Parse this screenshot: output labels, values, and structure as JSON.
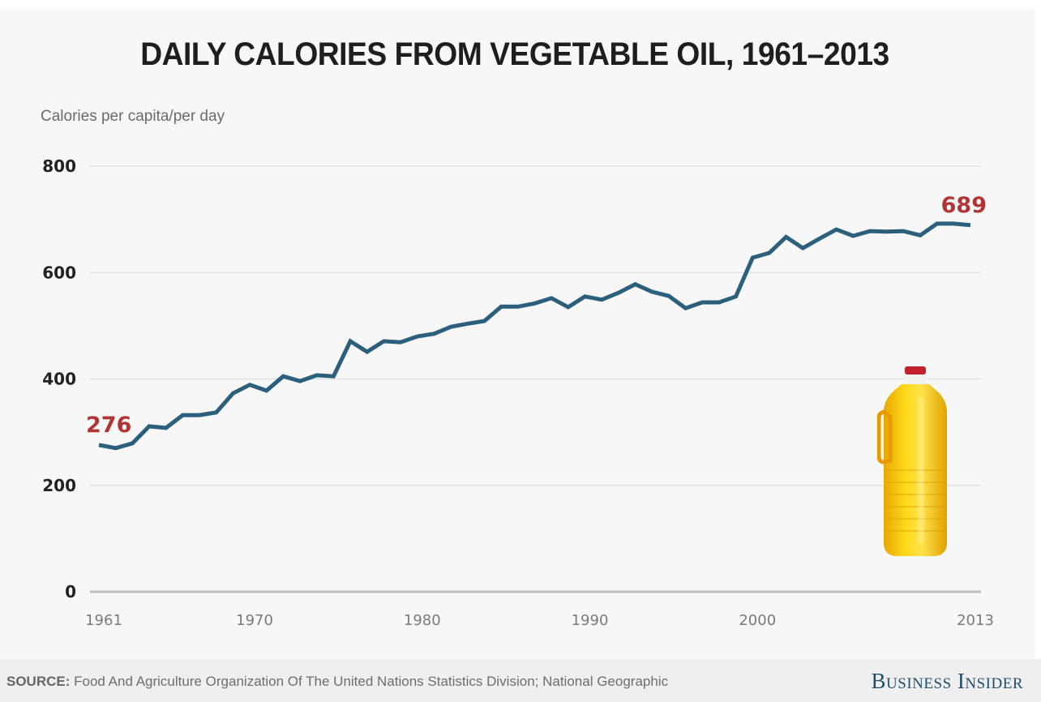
{
  "colors": {
    "line": "#2b5f7c",
    "annotation": "#b23333",
    "gridline": "#e2e2e2",
    "axis": "#bdbdbd",
    "brand": "#1f4e6e"
  },
  "chart_data": {
    "type": "line",
    "title": "DAILY CALORIES FROM VEGETABLE OIL, 1961–2013",
    "xlabel": "",
    "ylabel": "Calories per capita/per day",
    "x": [
      1961,
      1962,
      1963,
      1964,
      1965,
      1966,
      1967,
      1968,
      1969,
      1970,
      1971,
      1972,
      1973,
      1974,
      1975,
      1976,
      1977,
      1978,
      1979,
      1980,
      1981,
      1982,
      1983,
      1984,
      1985,
      1986,
      1987,
      1988,
      1989,
      1990,
      1991,
      1992,
      1993,
      1994,
      1995,
      1996,
      1997,
      1998,
      1999,
      2000,
      2001,
      2002,
      2003,
      2004,
      2005,
      2006,
      2007,
      2008,
      2009,
      2010,
      2011,
      2012,
      2013
    ],
    "series": [
      {
        "name": "Calories from vegetable oil",
        "values": [
          276,
          270,
          279,
          311,
          308,
          332,
          332,
          337,
          373,
          389,
          378,
          405,
          396,
          407,
          405,
          471,
          451,
          471,
          469,
          480,
          485,
          498,
          504,
          509,
          536,
          536,
          542,
          552,
          535,
          555,
          549,
          562,
          578,
          564,
          556,
          533,
          544,
          544,
          555,
          628,
          637,
          667,
          646,
          664,
          681,
          669,
          678,
          677,
          678,
          670,
          692,
          692,
          689
        ]
      }
    ],
    "xlim": [
      1961,
      2013
    ],
    "ylim": [
      0,
      800
    ],
    "yticks": [
      0,
      200,
      400,
      600,
      800
    ],
    "ytick_labels": [
      "0",
      "200",
      "400",
      "600",
      "800"
    ],
    "xticks": [
      1961,
      1970,
      1980,
      1990,
      2000,
      2013
    ],
    "xtick_labels": [
      "1961",
      "1970",
      "1980",
      "1990",
      "2000",
      "2013"
    ],
    "grid": true,
    "legend": "none",
    "annotations": [
      {
        "x": 1961,
        "y": 276,
        "text": "276"
      },
      {
        "x": 2013,
        "y": 689,
        "text": "689"
      }
    ]
  },
  "illustration": {
    "name": "vegetable oil bottle"
  },
  "footer": {
    "source_label": "SOURCE:",
    "source_text": " Food And Agriculture Organization Of The United Nations Statistics Division; National Geographic",
    "brand": "Business Insider"
  }
}
